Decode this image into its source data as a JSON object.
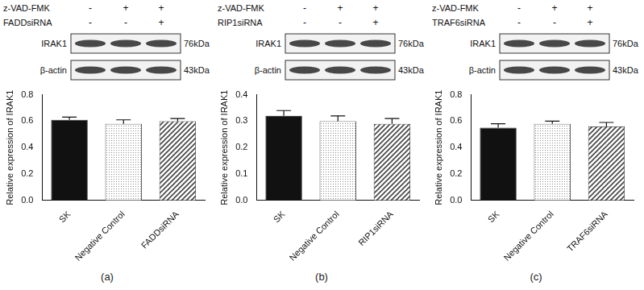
{
  "chart_data": [
    {
      "type": "bar",
      "panel_label": "(a)",
      "y_label": "Relative expression of IRAK1",
      "categories": [
        "SK",
        "Negative Control",
        "FADDsiRNA"
      ],
      "values": [
        0.61,
        0.58,
        0.6
      ],
      "errors": [
        0.02,
        0.03,
        0.02
      ],
      "colors": [
        "#111111",
        "#8a8a8a",
        "#444444"
      ],
      "ylim": [
        0,
        0.8
      ],
      "yticks": [
        {
          "value": 0,
          "label": "0.0"
        },
        0.2,
        0.4,
        0.6,
        0.8
      ],
      "grid": false,
      "blot": {
        "treatments": [
          {
            "label": "z-VAD-FMK",
            "signs": [
              "-",
              "+",
              "+"
            ]
          },
          {
            "label": "FADDsiRNA",
            "signs": [
              "-",
              "-",
              "+"
            ]
          }
        ],
        "bands": [
          {
            "label": "IRAK1",
            "size": "76kDa"
          },
          {
            "label": "β-actin",
            "size": "43kDa"
          }
        ]
      }
    },
    {
      "type": "bar",
      "panel_label": "(b)",
      "y_label": "Relative expression of IRAK1",
      "categories": [
        "SK",
        "Negative Control",
        "RIP1siRNA"
      ],
      "values": [
        0.32,
        0.3,
        0.29
      ],
      "errors": [
        0.02,
        0.02,
        0.02
      ],
      "colors": [
        "#111111",
        "#8a8a8a",
        "#444444"
      ],
      "ylim": [
        0,
        0.4
      ],
      "yticks": [
        {
          "value": 0,
          "label": "0.0"
        },
        0.1,
        0.2,
        0.3,
        0.4
      ],
      "grid": false,
      "blot": {
        "treatments": [
          {
            "label": "z-VAD-FMK",
            "signs": [
              "-",
              "+",
              "+"
            ]
          },
          {
            "label": "RIP1siRNA",
            "signs": [
              "-",
              "-",
              "+"
            ]
          }
        ],
        "bands": [
          {
            "label": "IRAK1",
            "size": "76kDa"
          },
          {
            "label": "β-actin",
            "size": "43kDa"
          }
        ]
      }
    },
    {
      "type": "bar",
      "panel_label": "(c)",
      "y_label": "Relative expression of IRAK1",
      "categories": [
        "SK",
        "Negative Control",
        "TRAF6siRNA"
      ],
      "values": [
        0.55,
        0.58,
        0.56
      ],
      "errors": [
        0.03,
        0.02,
        0.03
      ],
      "colors": [
        "#111111",
        "#8a8a8a",
        "#444444"
      ],
      "ylim": [
        0,
        0.8
      ],
      "yticks": [
        {
          "value": 0,
          "label": "0.0"
        },
        0.2,
        0.4,
        0.6,
        0.8
      ],
      "grid": false,
      "blot": {
        "treatments": [
          {
            "label": "z-VAD-FMK",
            "signs": [
              "-",
              "+",
              "+"
            ]
          },
          {
            "label": "TRAF6siRNA",
            "signs": [
              "-",
              "-",
              "+"
            ]
          }
        ],
        "bands": [
          {
            "label": "IRAK1",
            "size": "76kDa"
          },
          {
            "label": "β-actin",
            "size": "43kDa"
          }
        ]
      }
    }
  ]
}
